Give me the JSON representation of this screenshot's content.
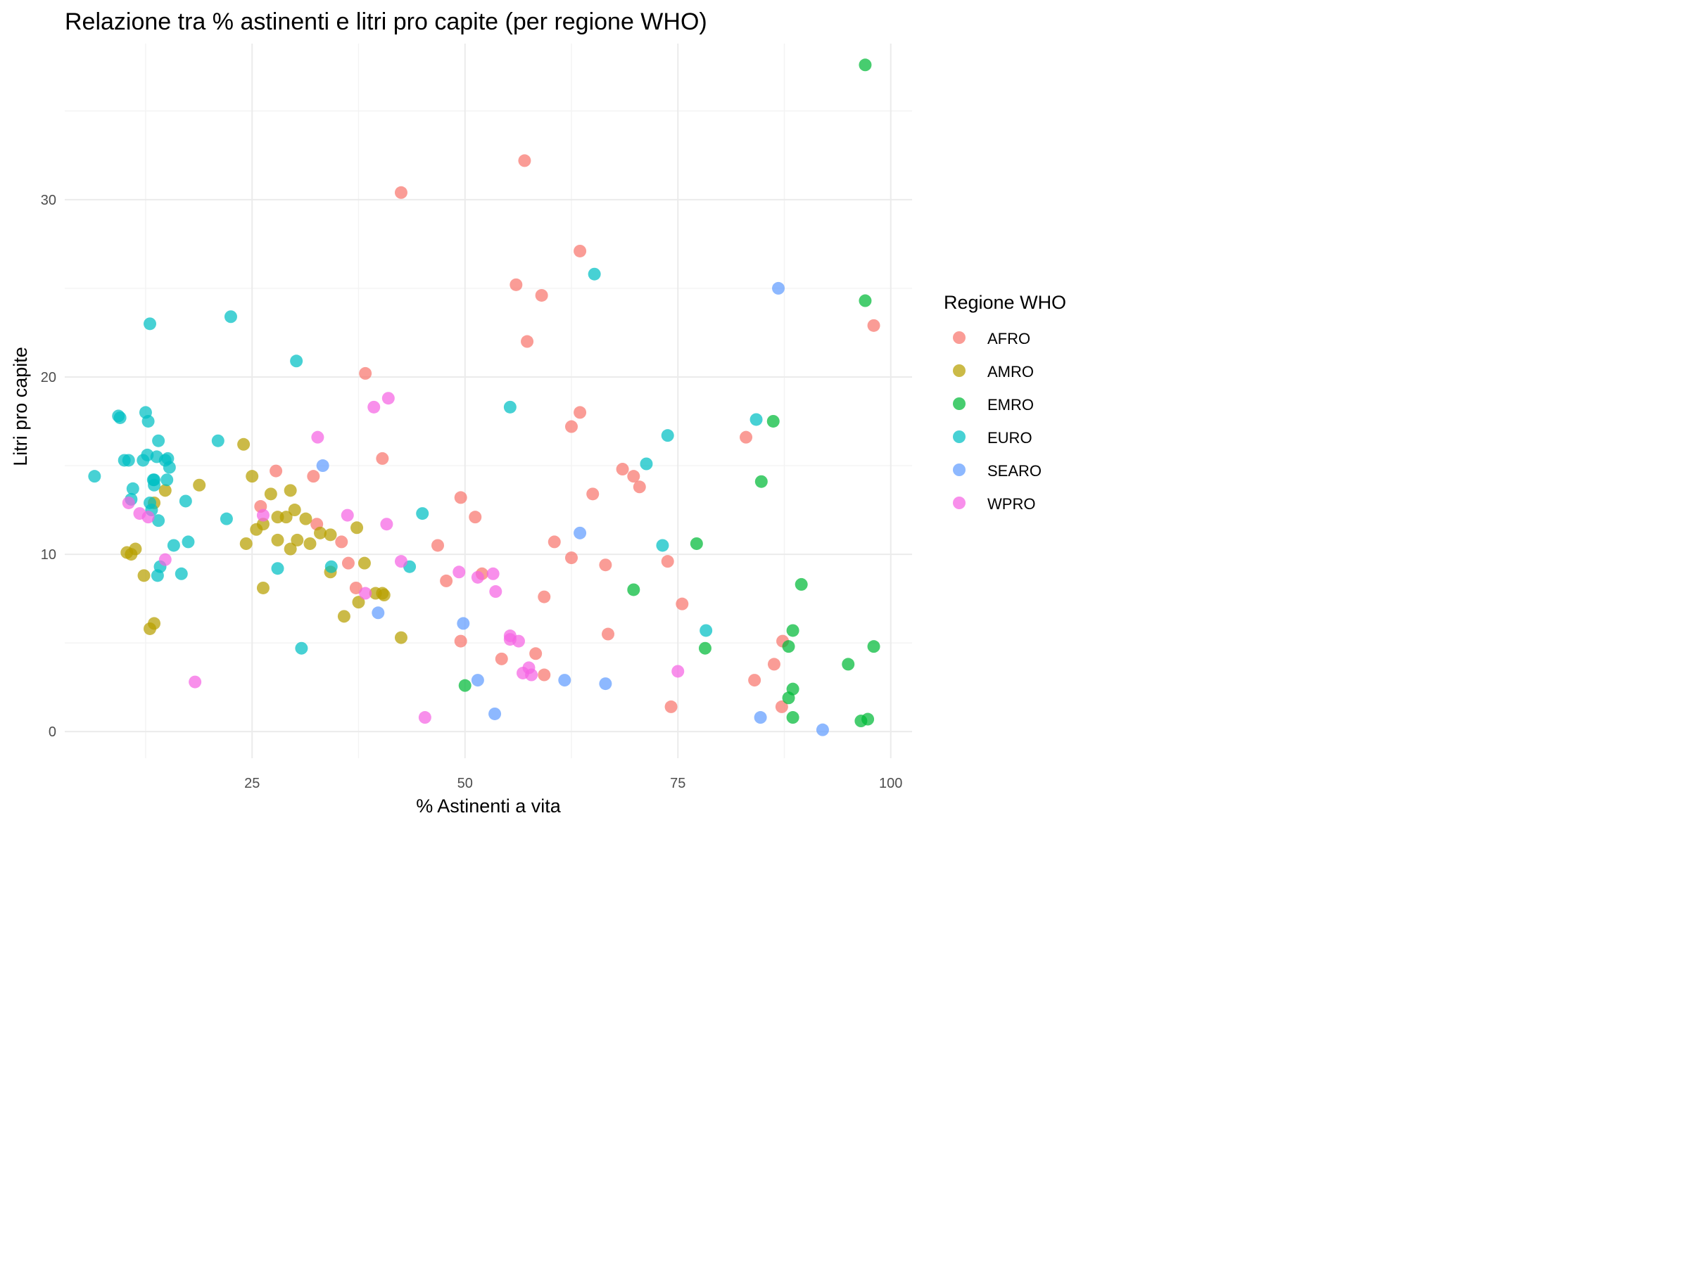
{
  "chart_data": {
    "type": "scatter",
    "title": "Relazione tra % astinenti e litri pro capite (per regione WHO)",
    "xlabel": "% Astinenti a vita",
    "ylabel": "Litri pro capite",
    "xlim": [
      3,
      102.5
    ],
    "ylim": [
      -1.5,
      38.8
    ],
    "x_ticks": [
      25,
      50,
      75,
      100
    ],
    "y_ticks": [
      0,
      10,
      20,
      30
    ],
    "grid": true,
    "legend": {
      "title": "Regione WHO",
      "position": "right"
    },
    "series": [
      {
        "name": "AFRO",
        "color": "#F8766D",
        "points": [
          [
            42.5,
            30.4
          ],
          [
            57,
            32.2
          ],
          [
            63.5,
            27.1
          ],
          [
            56,
            25.2
          ],
          [
            59,
            24.6
          ],
          [
            57.3,
            22
          ],
          [
            98,
            22.9
          ],
          [
            38.3,
            20.2
          ],
          [
            63.5,
            18
          ],
          [
            62.5,
            17.2
          ],
          [
            83,
            16.6
          ],
          [
            40.3,
            15.4
          ],
          [
            68.5,
            14.8
          ],
          [
            69.8,
            14.4
          ],
          [
            70.5,
            13.8
          ],
          [
            65,
            13.4
          ],
          [
            27.8,
            14.7
          ],
          [
            32.2,
            14.4
          ],
          [
            49.5,
            13.2
          ],
          [
            51.2,
            12.1
          ],
          [
            26,
            12.7
          ],
          [
            32.6,
            11.7
          ],
          [
            35.5,
            10.7
          ],
          [
            60.5,
            10.7
          ],
          [
            46.8,
            10.5
          ],
          [
            62.5,
            9.8
          ],
          [
            73.8,
            9.6
          ],
          [
            66.5,
            9.4
          ],
          [
            36.3,
            9.5
          ],
          [
            47.8,
            8.5
          ],
          [
            52,
            8.9
          ],
          [
            37.2,
            8.1
          ],
          [
            59.3,
            7.6
          ],
          [
            75.5,
            7.2
          ],
          [
            66.8,
            5.5
          ],
          [
            49.5,
            5.1
          ],
          [
            87.3,
            5.1
          ],
          [
            58.3,
            4.4
          ],
          [
            54.3,
            4.1
          ],
          [
            86.3,
            3.8
          ],
          [
            59.3,
            3.2
          ],
          [
            84,
            2.9
          ],
          [
            74.2,
            1.4
          ],
          [
            87.2,
            1.4
          ]
        ]
      },
      {
        "name": "AMRO",
        "color": "#B79F00",
        "points": [
          [
            24,
            16.2
          ],
          [
            25,
            14.4
          ],
          [
            18.8,
            13.9
          ],
          [
            14.8,
            13.6
          ],
          [
            13.5,
            12.9
          ],
          [
            29.5,
            13.6
          ],
          [
            27.2,
            13.4
          ],
          [
            30,
            12.5
          ],
          [
            28,
            12.1
          ],
          [
            29,
            12.1
          ],
          [
            31.3,
            12
          ],
          [
            33,
            11.2
          ],
          [
            34.2,
            11.1
          ],
          [
            37.3,
            11.5
          ],
          [
            25.5,
            11.4
          ],
          [
            26.3,
            11.7
          ],
          [
            28,
            10.8
          ],
          [
            30.3,
            10.8
          ],
          [
            31.8,
            10.6
          ],
          [
            24.3,
            10.6
          ],
          [
            29.5,
            10.3
          ],
          [
            10.3,
            10.1
          ],
          [
            10.8,
            10
          ],
          [
            11.3,
            10.3
          ],
          [
            34.2,
            9
          ],
          [
            38.2,
            9.5
          ],
          [
            12.3,
            8.8
          ],
          [
            26.3,
            8.1
          ],
          [
            39.5,
            7.8
          ],
          [
            40.3,
            7.8
          ],
          [
            40.5,
            7.7
          ],
          [
            37.5,
            7.3
          ],
          [
            35.8,
            6.5
          ],
          [
            13.5,
            6.1
          ],
          [
            13,
            5.8
          ],
          [
            42.5,
            5.3
          ]
        ]
      },
      {
        "name": "EMRO",
        "color": "#00BA38",
        "points": [
          [
            97,
            37.6
          ],
          [
            97,
            24.3
          ],
          [
            86.2,
            17.5
          ],
          [
            84.8,
            14.1
          ],
          [
            77.2,
            10.6
          ],
          [
            89.5,
            8.3
          ],
          [
            69.8,
            8
          ],
          [
            88.5,
            5.7
          ],
          [
            78.2,
            4.7
          ],
          [
            88,
            4.8
          ],
          [
            98,
            4.8
          ],
          [
            95,
            3.8
          ],
          [
            50,
            2.6
          ],
          [
            88.5,
            2.4
          ],
          [
            88,
            1.9
          ],
          [
            88.5,
            0.8
          ],
          [
            96.5,
            0.6
          ],
          [
            97.3,
            0.7
          ]
        ]
      },
      {
        "name": "EURO",
        "color": "#00BFC4",
        "points": [
          [
            13,
            23
          ],
          [
            22.5,
            23.4
          ],
          [
            30.2,
            20.9
          ],
          [
            65.2,
            25.8
          ],
          [
            55.3,
            18.3
          ],
          [
            84.2,
            17.6
          ],
          [
            73.8,
            16.7
          ],
          [
            71.3,
            15.1
          ],
          [
            9.3,
            17.8
          ],
          [
            9.5,
            17.7
          ],
          [
            12.5,
            18
          ],
          [
            12.8,
            17.5
          ],
          [
            14,
            16.4
          ],
          [
            21,
            16.4
          ],
          [
            10,
            15.3
          ],
          [
            10.5,
            15.3
          ],
          [
            12.2,
            15.3
          ],
          [
            12.7,
            15.6
          ],
          [
            13.8,
            15.5
          ],
          [
            14.8,
            15.3
          ],
          [
            15.1,
            15.4
          ],
          [
            15.3,
            14.9
          ],
          [
            15,
            14.2
          ],
          [
            13.5,
            14.2
          ],
          [
            13.4,
            14.2
          ],
          [
            13.5,
            13.9
          ],
          [
            11,
            13.7
          ],
          [
            6.5,
            14.4
          ],
          [
            10.8,
            13.1
          ],
          [
            13,
            12.9
          ],
          [
            13.2,
            12.5
          ],
          [
            14,
            11.9
          ],
          [
            17.2,
            13
          ],
          [
            22,
            12
          ],
          [
            45,
            12.3
          ],
          [
            73.2,
            10.5
          ],
          [
            17.5,
            10.7
          ],
          [
            15.8,
            10.5
          ],
          [
            28,
            9.2
          ],
          [
            34.3,
            9.3
          ],
          [
            43.5,
            9.3
          ],
          [
            14.2,
            9.3
          ],
          [
            13.9,
            8.8
          ],
          [
            16.7,
            8.9
          ],
          [
            78.3,
            5.7
          ],
          [
            30.8,
            4.7
          ]
        ]
      },
      {
        "name": "SEARO",
        "color": "#619CFF",
        "points": [
          [
            86.8,
            25
          ],
          [
            33.3,
            15
          ],
          [
            63.5,
            11.2
          ],
          [
            39.8,
            6.7
          ],
          [
            49.8,
            6.1
          ],
          [
            51.5,
            2.9
          ],
          [
            61.7,
            2.9
          ],
          [
            66.5,
            2.7
          ],
          [
            53.5,
            1
          ],
          [
            84.7,
            0.8
          ],
          [
            92,
            0.1
          ]
        ]
      },
      {
        "name": "WPRO",
        "color": "#F564E3",
        "points": [
          [
            41,
            18.8
          ],
          [
            39.3,
            18.3
          ],
          [
            32.7,
            16.6
          ],
          [
            10.5,
            12.9
          ],
          [
            11.8,
            12.3
          ],
          [
            12.8,
            12.1
          ],
          [
            26.3,
            12.2
          ],
          [
            36.2,
            12.2
          ],
          [
            40.8,
            11.7
          ],
          [
            42.5,
            9.6
          ],
          [
            49.3,
            9
          ],
          [
            53.3,
            8.9
          ],
          [
            51.5,
            8.7
          ],
          [
            53.6,
            7.9
          ],
          [
            38.3,
            7.8
          ],
          [
            14.8,
            9.7
          ],
          [
            55.3,
            5.4
          ],
          [
            55.3,
            5.2
          ],
          [
            56.3,
            5.1
          ],
          [
            57.5,
            3.6
          ],
          [
            56.8,
            3.3
          ],
          [
            57.8,
            3.2
          ],
          [
            75,
            3.4
          ],
          [
            18.3,
            2.8
          ],
          [
            45.3,
            0.8
          ]
        ]
      }
    ]
  }
}
